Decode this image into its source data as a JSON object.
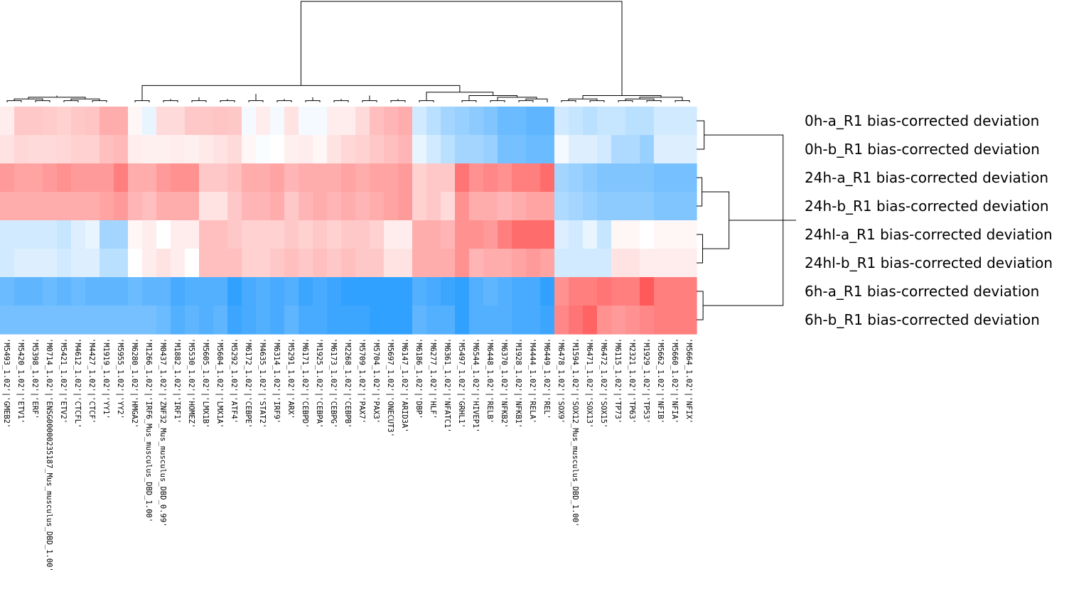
{
  "chart_data": {
    "type": "heatmap",
    "title": "",
    "color_scale": {
      "low": "#1a96ff",
      "mid": "#ffffff",
      "high": "#ff4747",
      "range": [
        -1,
        1
      ]
    },
    "rows": [
      "0h-a_R1 bias-corrected deviation",
      "0h-b_R1 bias-corrected deviation",
      "24h-a_R1 bias-corrected deviation",
      "24h-b_R1 bias-corrected deviation",
      "24hl-a_R1 bias-corrected deviation",
      "24hl-b_R1 bias-corrected deviation",
      "6h-a_R1 bias-corrected deviation",
      "6h-b_R1 bias-corrected deviation"
    ],
    "columns": [
      "'M5493_1.02'|'GMEB2'",
      "'M5420_1.02'|'ETV1'",
      "'M5398_1.02'|'ERF'",
      "'M0714_1.02'|'ENSG00000235187_Mus_musculus_DBD_1.00'",
      "'M5421_1.02'|'ETV2'",
      "'M4612_1.02'|'CTCFL'",
      "'M4427_1.02'|'CTCF'",
      "'M1919_1.02'|'YY1'",
      "'M5955_1.02'|'YY2'",
      "'M6280_1.02'|'HMGA2'",
      "'M1266_1.02'|'IRF6_Mus_musculus_DBD_1.00'",
      "'M0437_1.02'|'ZNF32_Mus_musculus_DBD_0.99'",
      "'M1882_1.02'|'IRF1'",
      "'M5530_1.02'|'HOMEZ'",
      "'M5605_1.02'|'LMX1B'",
      "'M5604_1.02'|'LMX1A'",
      "'M5292_1.02'|'ATF4'",
      "'M6172_1.02'|'CEBPE'",
      "'M4635_1.02'|'STAT2'",
      "'M6314_1.02'|'IRF9'",
      "'M5291_1.02'|'ARX'",
      "'M6171_1.02'|'CEBPD'",
      "'M1925_1.02'|'CEBPA'",
      "'M6173_1.02'|'CEBPG'",
      "'M2268_1.02'|'CEBPB'",
      "'M5709_1.02'|'PAX7'",
      "'M5704_1.02'|'PAX3'",
      "'M5697_1.02'|'ONECUT3'",
      "'M6147_1.02'|'ARID3A'",
      "'M6186_1.02'|'DBP'",
      "'M6277_1.02'|'HLF'",
      "'M6361_1.02'|'NFATC1'",
      "'M5497_1.02'|'GRHL1'",
      "'M6544_1.02'|'HIVEP1'",
      "'M6448_1.02'|'RELB'",
      "'M6370_1.02'|'NFKB2'",
      "'M1928_1.02'|'NFKB1'",
      "'M4444_1.02'|'RELA'",
      "'M6449_1.02'|'REL'",
      "'M6478_1.02'|'SOX9'",
      "'M1594_1.02'|'SOX12_Mus_musculus_DBD_1.00'",
      "'M6471_1.02'|'SOX13'",
      "'M6472_1.02'|'SOX15'",
      "'M6115_1.02'|'TP73'",
      "'M2321_1.02'|'TP63'",
      "'M1929_1.02'|'TP53'",
      "'M5662_1.02'|'NFIB'",
      "'M5660_1.02'|'NFIA'",
      "'M5664_1.02'|'NFIX'"
    ],
    "values": [
      [
        0.1,
        0.3,
        0.3,
        0.28,
        0.25,
        0.3,
        0.32,
        0.45,
        0.45,
        0.05,
        -0.1,
        0.2,
        0.2,
        0.3,
        0.3,
        0.32,
        0.3,
        -0.05,
        0.1,
        -0.05,
        0.15,
        -0.05,
        -0.05,
        0.1,
        0.1,
        0.2,
        0.35,
        0.4,
        0.45,
        -0.2,
        -0.3,
        -0.4,
        -0.45,
        -0.5,
        -0.55,
        -0.65,
        -0.65,
        -0.7,
        -0.7,
        -0.2,
        -0.25,
        -0.3,
        -0.25,
        -0.25,
        -0.3,
        -0.3,
        -0.2,
        -0.2,
        -0.2
      ],
      [
        0.15,
        0.22,
        0.2,
        0.2,
        0.22,
        0.25,
        0.25,
        0.35,
        0.38,
        0.1,
        0.08,
        0.08,
        0.1,
        0.08,
        0.12,
        0.15,
        0.2,
        0.05,
        -0.02,
        0.0,
        0.08,
        0.1,
        0.05,
        0.15,
        0.22,
        0.25,
        0.3,
        0.35,
        0.4,
        -0.1,
        -0.2,
        -0.3,
        -0.4,
        -0.4,
        -0.45,
        -0.6,
        -0.6,
        -0.65,
        -0.65,
        -0.05,
        -0.15,
        -0.15,
        -0.2,
        -0.35,
        -0.35,
        -0.45,
        -0.15,
        -0.15,
        -0.15
      ],
      [
        0.55,
        0.5,
        0.5,
        0.55,
        0.6,
        0.55,
        0.55,
        0.55,
        0.7,
        0.45,
        0.45,
        0.55,
        0.6,
        0.6,
        0.3,
        0.3,
        0.35,
        0.45,
        0.45,
        0.5,
        0.4,
        0.45,
        0.45,
        0.45,
        0.5,
        0.45,
        0.5,
        0.5,
        0.55,
        0.25,
        0.3,
        0.3,
        0.75,
        0.6,
        0.65,
        0.6,
        0.7,
        0.7,
        0.8,
        -0.4,
        -0.45,
        -0.5,
        -0.55,
        -0.55,
        -0.55,
        -0.55,
        -0.6,
        -0.6,
        -0.6
      ],
      [
        0.45,
        0.45,
        0.45,
        0.45,
        0.45,
        0.45,
        0.45,
        0.5,
        0.55,
        0.4,
        0.35,
        0.45,
        0.45,
        0.45,
        0.15,
        0.15,
        0.3,
        0.4,
        0.4,
        0.45,
        0.3,
        0.4,
        0.45,
        0.4,
        0.45,
        0.4,
        0.45,
        0.5,
        0.55,
        0.25,
        0.3,
        0.2,
        0.6,
        0.45,
        0.45,
        0.4,
        0.45,
        0.5,
        0.5,
        -0.35,
        -0.4,
        -0.45,
        -0.5,
        -0.5,
        -0.5,
        -0.5,
        -0.55,
        -0.55,
        -0.55
      ],
      [
        -0.2,
        -0.2,
        -0.2,
        -0.2,
        -0.25,
        -0.15,
        -0.1,
        -0.4,
        -0.4,
        0.05,
        0.1,
        0.0,
        0.1,
        0.1,
        0.35,
        0.35,
        0.3,
        0.25,
        0.25,
        0.25,
        0.3,
        0.25,
        0.3,
        0.25,
        0.3,
        0.3,
        0.25,
        0.1,
        0.1,
        0.45,
        0.45,
        0.4,
        0.6,
        0.6,
        0.55,
        0.7,
        0.8,
        0.8,
        0.8,
        -0.15,
        -0.2,
        -0.1,
        -0.25,
        0.05,
        0.05,
        0.0,
        0.05,
        0.05,
        0.05
      ],
      [
        -0.2,
        -0.15,
        -0.15,
        -0.15,
        -0.2,
        -0.15,
        -0.15,
        -0.3,
        -0.3,
        0.0,
        0.1,
        0.15,
        0.1,
        0.0,
        0.35,
        0.35,
        0.35,
        0.25,
        0.25,
        0.3,
        0.35,
        0.3,
        0.35,
        0.3,
        0.35,
        0.3,
        0.3,
        0.15,
        0.15,
        0.45,
        0.45,
        0.45,
        0.6,
        0.4,
        0.45,
        0.45,
        0.5,
        0.55,
        0.5,
        -0.2,
        -0.2,
        -0.2,
        -0.2,
        0.15,
        0.15,
        0.1,
        0.1,
        0.1,
        0.1
      ],
      [
        -0.65,
        -0.7,
        -0.7,
        -0.65,
        -0.7,
        -0.65,
        -0.7,
        -0.7,
        -0.7,
        -0.65,
        -0.7,
        -0.7,
        -0.8,
        -0.75,
        -0.75,
        -0.75,
        -0.9,
        -0.8,
        -0.75,
        -0.8,
        -0.75,
        -0.85,
        -0.8,
        -0.85,
        -0.9,
        -0.9,
        -0.9,
        -0.9,
        -0.9,
        -0.75,
        -0.8,
        -0.85,
        -0.9,
        -0.75,
        -0.7,
        -0.75,
        -0.8,
        -0.8,
        -0.9,
        0.6,
        0.7,
        0.7,
        0.75,
        0.7,
        0.7,
        0.9,
        0.7,
        0.7,
        0.7
      ],
      [
        -0.6,
        -0.6,
        -0.6,
        -0.6,
        -0.6,
        -0.6,
        -0.6,
        -0.6,
        -0.6,
        -0.6,
        -0.6,
        -0.65,
        -0.75,
        -0.7,
        -0.75,
        -0.7,
        -0.85,
        -0.8,
        -0.75,
        -0.8,
        -0.7,
        -0.8,
        -0.8,
        -0.85,
        -0.85,
        -0.85,
        -0.9,
        -0.9,
        -0.9,
        -0.7,
        -0.75,
        -0.75,
        -0.9,
        -0.75,
        -0.75,
        -0.75,
        -0.8,
        -0.8,
        -0.85,
        0.65,
        0.75,
        0.85,
        0.6,
        0.55,
        0.6,
        0.65,
        0.7,
        0.7,
        0.7
      ]
    ],
    "row_dendrogram": [
      {
        "a": 0,
        "b": 1,
        "h": 0.35
      },
      {
        "a": 2,
        "b": 3,
        "h": 0.25
      },
      {
        "a": 4,
        "b": 5,
        "h": 0.28
      },
      {
        "a": 6,
        "b": 7,
        "h": 0.3
      },
      {
        "a": 9,
        "b": 10,
        "h": 1.5
      },
      {
        "a": 8,
        "b": 11,
        "h": 4.0
      },
      {
        "a": 12,
        "b": 13,
        "h": 4.6
      }
    ],
    "col_dendrogram": [
      {
        "a": 0,
        "b": 1,
        "h": 0.05
      },
      {
        "a": 2,
        "b": 3,
        "h": 0.05
      },
      {
        "a": 4,
        "b": 5,
        "h": 0.05
      },
      {
        "a": 6,
        "b": 7,
        "h": 0.05
      },
      {
        "a": 49,
        "b": 50,
        "h": 0.1
      },
      {
        "a": 51,
        "b": 52,
        "h": 0.1
      },
      {
        "a": 53,
        "b": 54,
        "h": 0.15
      },
      {
        "a": 55,
        "b": 56,
        "h": 0.2
      },
      {
        "a": 57,
        "b": 8,
        "h": 0.3
      },
      {
        "a": 9,
        "b": 10,
        "h": 0.05
      },
      {
        "a": 11,
        "b": 12,
        "h": 0.05
      },
      {
        "a": 59,
        "b": 60,
        "h": 0.1
      },
      {
        "a": 13,
        "b": 14,
        "h": 0.05
      },
      {
        "a": 15,
        "b": 16,
        "h": 0.05
      },
      {
        "a": 62,
        "b": 63,
        "h": 0.1
      },
      {
        "a": 61,
        "b": 64,
        "h": 0.15
      },
      {
        "a": 17,
        "b": 18,
        "h": 0.05
      },
      {
        "a": 19,
        "b": 20,
        "h": 0.05
      },
      {
        "a": 66,
        "b": 67,
        "h": 0.1
      },
      {
        "a": 21,
        "b": 22,
        "h": 0.05
      },
      {
        "a": 23,
        "b": 24,
        "h": 0.05
      },
      {
        "a": 69,
        "b": 70,
        "h": 0.1
      },
      {
        "a": 68,
        "b": 71,
        "h": 0.15
      },
      {
        "a": 25,
        "b": 26,
        "h": 0.05
      },
      {
        "a": 27,
        "b": 28,
        "h": 0.05
      },
      {
        "a": 73,
        "b": 74,
        "h": 0.1
      },
      {
        "a": 72,
        "b": 75,
        "h": 0.2
      },
      {
        "a": 65,
        "b": 76,
        "h": 0.25
      },
      {
        "a": 29,
        "b": 30,
        "h": 0.05
      },
      {
        "a": 78,
        "b": 31,
        "h": 0.1
      },
      {
        "a": 32,
        "b": 33,
        "h": 0.05
      },
      {
        "a": 34,
        "b": 35,
        "h": 0.05
      },
      {
        "a": 36,
        "b": 37,
        "h": 0.05
      },
      {
        "a": 38,
        "b": 81,
        "h": 0.1
      },
      {
        "a": 80,
        "b": 82,
        "h": 0.15
      },
      {
        "a": 79,
        "b": 83,
        "h": 0.2
      },
      {
        "a": 77,
        "b": 84,
        "h": 0.3
      },
      {
        "a": 58,
        "b": 85,
        "h": 0.5
      },
      {
        "a": 39,
        "b": 40,
        "h": 0.05
      },
      {
        "a": 41,
        "b": 42,
        "h": 0.05
      },
      {
        "a": 87,
        "b": 88,
        "h": 0.1
      },
      {
        "a": 43,
        "b": 44,
        "h": 0.05
      },
      {
        "a": 45,
        "b": 46,
        "h": 0.05
      },
      {
        "a": 90,
        "b": 91,
        "h": 0.1
      },
      {
        "a": 47,
        "b": 48,
        "h": 0.05
      },
      {
        "a": 92,
        "b": 93,
        "h": 0.15
      },
      {
        "a": 89,
        "b": 94,
        "h": 0.2
      },
      {
        "a": 86,
        "b": 95,
        "h": 3.0
      }
    ]
  }
}
